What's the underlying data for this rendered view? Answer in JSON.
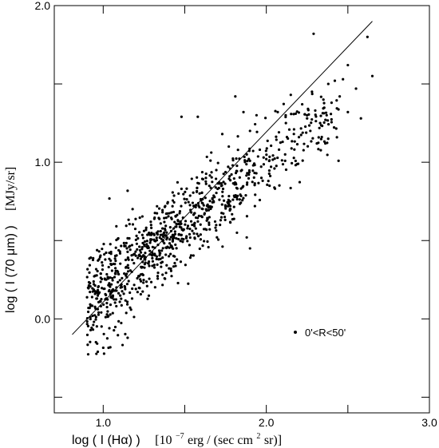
{
  "chart_data": {
    "type": "scatter",
    "xlim": [
      0.7,
      3.0
    ],
    "ylim": [
      -0.6,
      2.0
    ],
    "x_ticks": [
      {
        "value": 1.0,
        "label": "1.0"
      },
      {
        "value": 1.5,
        "label": ""
      },
      {
        "value": 2.0,
        "label": "2.0"
      },
      {
        "value": 2.5,
        "label": ""
      },
      {
        "value": 3.0,
        "label": "3.0"
      }
    ],
    "y_ticks": [
      {
        "value": -0.5,
        "label": ""
      },
      {
        "value": 0.0,
        "label": "0.0"
      },
      {
        "value": 0.5,
        "label": ""
      },
      {
        "value": 1.0,
        "label": "1.0"
      },
      {
        "value": 1.5,
        "label": ""
      },
      {
        "value": 2.0,
        "label": "2.0"
      }
    ],
    "xlabel": {
      "main": "log ( I (Hα) )",
      "unit_pre": "[10",
      "unit_exp": "−7",
      "unit_mid": " erg / (sec cm",
      "unit_exp2": "2",
      "unit_post": " sr)]"
    },
    "ylabel": {
      "main": "log ( I (70 μm) )",
      "unit": "[MJy/sr]"
    },
    "legend": {
      "label": "0'<R<50'",
      "placement": "lower-right"
    },
    "grid": false,
    "fit_line": {
      "x": [
        0.81,
        2.65
      ],
      "y": [
        -0.1,
        1.9
      ]
    },
    "series": [
      {
        "marker": "dot",
        "points": [
          [
            2.29,
            1.82
          ],
          [
            2.62,
            1.8
          ],
          [
            2.65,
            1.55
          ],
          [
            2.47,
            1.53
          ],
          [
            2.5,
            1.62
          ],
          [
            2.55,
            1.47
          ],
          [
            2.58,
            1.28
          ],
          [
            2.45,
            1.42
          ],
          [
            2.5,
            1.32
          ],
          [
            2.4,
            1.38
          ],
          [
            2.38,
            1.5
          ],
          [
            2.35,
            1.4
          ],
          [
            2.3,
            1.33
          ],
          [
            2.33,
            1.25
          ],
          [
            2.27,
            1.2
          ],
          [
            2.25,
            1.28
          ],
          [
            2.2,
            1.16
          ],
          [
            2.17,
            1.21
          ],
          [
            2.12,
            1.25
          ],
          [
            2.1,
            1.13
          ],
          [
            2.22,
            1.37
          ],
          [
            2.18,
            1.31
          ],
          [
            2.15,
            1.43
          ],
          [
            2.28,
            1.45
          ],
          [
            2.42,
            1.52
          ],
          [
            2.37,
            1.3
          ],
          [
            2.31,
            1.12
          ],
          [
            2.07,
            1.32
          ],
          [
            1.94,
            1.3
          ],
          [
            1.48,
            1.29
          ],
          [
            1.58,
            1.29
          ],
          [
            1.81,
            1.42
          ],
          [
            1.86,
            1.32
          ],
          [
            1.73,
            1.18
          ],
          [
            1.77,
            1.1
          ],
          [
            1.88,
            1.05
          ],
          [
            1.96,
            1.08
          ],
          [
            2.0,
            1.02
          ],
          [
            2.05,
            0.96
          ],
          [
            1.92,
            0.98
          ],
          [
            1.85,
            0.95
          ],
          [
            1.9,
            1.2
          ],
          [
            1.97,
            0.9
          ],
          [
            2.02,
            0.85
          ],
          [
            1.93,
            0.72
          ],
          [
            1.72,
            0.63
          ],
          [
            1.88,
            0.52
          ],
          [
            1.9,
            0.45
          ],
          [
            1.82,
            0.55
          ],
          [
            1.78,
            0.7
          ]
        ]
      }
    ]
  }
}
